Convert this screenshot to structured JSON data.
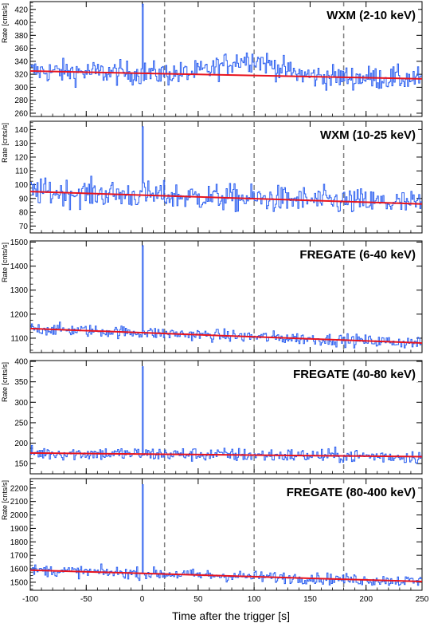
{
  "figure": {
    "xlabel": "Time after the trigger [s]",
    "xlim": [
      -100,
      250
    ],
    "xticks": [
      -100,
      -50,
      0,
      50,
      100,
      150,
      200,
      250
    ],
    "dashed_lines_x": [
      20,
      100,
      180
    ],
    "colors": {
      "data": "#2a5ef0",
      "fit": "#e8141e",
      "dash": "#808080",
      "axis": "#000000"
    }
  },
  "chart_data": [
    {
      "type": "line",
      "title": "WXM (2-10 keV)",
      "ylabel": "Rate [cnts/s]",
      "ylim": [
        255,
        432
      ],
      "yticks": [
        260,
        280,
        300,
        320,
        340,
        360,
        380,
        400,
        420
      ],
      "bin_width": 1,
      "x_start": -100,
      "peak": {
        "x": 0,
        "y": 428
      },
      "trend": {
        "mean": 320,
        "noise": 13
      },
      "bumps": [
        {
          "x": 95,
          "amp": 25,
          "width": 45
        }
      ],
      "fit": {
        "x": [
          -100,
          250
        ],
        "y": [
          325,
          313
        ]
      }
    },
    {
      "type": "line",
      "title": "WXM (10-25 keV)",
      "ylabel": "Rate [cnts/s]",
      "ylim": [
        65,
        146
      ],
      "yticks": [
        70,
        80,
        90,
        100,
        110,
        120,
        130,
        140
      ],
      "bin_width": 1,
      "x_start": -100,
      "peak": {
        "x": 0,
        "y": 142
      },
      "trend": {
        "mean": 92,
        "noise": 7
      },
      "bumps": [],
      "fit": {
        "x": [
          -100,
          250
        ],
        "y": [
          95,
          86
        ]
      }
    },
    {
      "type": "line",
      "title": "FREGATE (6-40 keV)",
      "ylabel": "Rate [cnts/s]",
      "ylim": [
        1040,
        1505
      ],
      "yticks": [
        1100,
        1200,
        1300,
        1400,
        1500
      ],
      "bin_width": 1,
      "x_start": -100,
      "peak": {
        "x": 0,
        "y": 1485
      },
      "trend": {
        "mean": 1110,
        "noise": 18
      },
      "bumps": [],
      "fit": {
        "x": [
          -100,
          250
        ],
        "y": [
          1140,
          1080
        ]
      }
    },
    {
      "type": "line",
      "title": "FREGATE (40-80 keV)",
      "ylabel": "Rate [cnts/s]",
      "ylim": [
        125,
        402
      ],
      "yticks": [
        150,
        200,
        250,
        300,
        350,
        400
      ],
      "bin_width": 1,
      "x_start": -100,
      "peak": {
        "x": 0,
        "y": 387
      },
      "trend": {
        "mean": 170,
        "noise": 12
      },
      "bumps": [],
      "fit": {
        "x": [
          -100,
          250
        ],
        "y": [
          176,
          167
        ]
      }
    },
    {
      "type": "line",
      "title": "FREGATE (80-400 keV)",
      "ylabel": "Rate [cnts/s]",
      "ylim": [
        1440,
        2270
      ],
      "yticks": [
        1500,
        1600,
        1700,
        1800,
        1900,
        2000,
        2100,
        2200
      ],
      "bin_width": 1,
      "x_start": -100,
      "peak": {
        "x": 0,
        "y": 2225
      },
      "trend": {
        "mean": 1560,
        "noise": 30
      },
      "bumps": [],
      "fit": {
        "x": [
          -100,
          250
        ],
        "y": [
          1590,
          1505
        ]
      }
    }
  ]
}
